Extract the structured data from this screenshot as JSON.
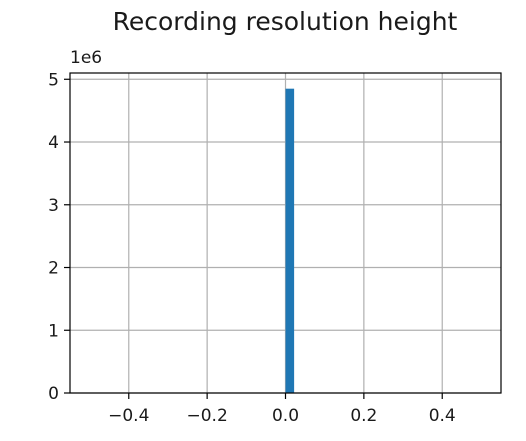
{
  "chart_data": {
    "type": "bar",
    "title": "Recording resolution height",
    "xlabel": "",
    "ylabel": "",
    "y_offset_label": "1e6",
    "xlim": [
      -0.55,
      0.55
    ],
    "ylim": [
      0,
      5.1
    ],
    "grid": true,
    "bars": [
      {
        "x_start": 0.0,
        "x_end": 0.022,
        "value": 4.85
      }
    ],
    "x_ticks": [
      {
        "value": -0.4,
        "label": "−0.4"
      },
      {
        "value": -0.2,
        "label": "−0.2"
      },
      {
        "value": 0.0,
        "label": "0.0"
      },
      {
        "value": 0.2,
        "label": "0.2"
      },
      {
        "value": 0.4,
        "label": "0.4"
      }
    ],
    "y_ticks": [
      {
        "value": 0,
        "label": "0"
      },
      {
        "value": 1,
        "label": "1"
      },
      {
        "value": 2,
        "label": "2"
      },
      {
        "value": 3,
        "label": "3"
      },
      {
        "value": 4,
        "label": "4"
      },
      {
        "value": 5,
        "label": "5"
      }
    ],
    "bar_color": "#1f77b4"
  }
}
